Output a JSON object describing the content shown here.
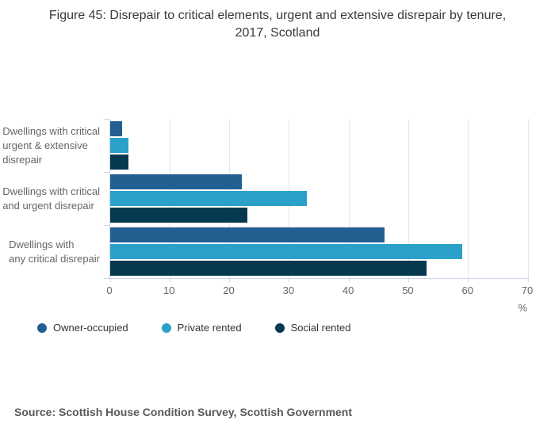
{
  "title": "Figure 45: Disrepair to critical elements, urgent and extensive disrepair by tenure, 2017, Scotland",
  "source": "Source: Scottish House Condition Survey, Scottish Government",
  "chart_data": {
    "type": "bar",
    "orientation": "horizontal",
    "title": "Figure 45: Disrepair to critical elements, urgent and extensive disrepair by tenure, 2017, Scotland",
    "categories": [
      "Dwellings with critical\nurgent & extensive\ndisrepair",
      "Dwellings with critical\nand urgent disrepair",
      "Dwellings with\nany critical disrepair"
    ],
    "series": [
      {
        "name": "Owner-occupied",
        "color": "#235f91",
        "values": [
          2,
          22,
          46
        ]
      },
      {
        "name": "Private rented",
        "color": "#2ba0c9",
        "values": [
          3,
          33,
          59
        ]
      },
      {
        "name": "Social rented",
        "color": "#063950",
        "values": [
          3,
          23,
          53
        ]
      }
    ],
    "xlabel": "%",
    "xlim": [
      0,
      70
    ],
    "xticks": [
      0,
      10,
      20,
      30,
      40,
      50,
      60,
      70
    ],
    "grid": true,
    "legend_position": "bottom-left"
  },
  "colors": {
    "grid_line": "#e6e6e6",
    "axis_line": "#ccd6eb",
    "tick_text": "#666666",
    "category_text": "#666666",
    "title_text": "#3a3a3a",
    "legend_text": "#333333",
    "source_text": "#58595b"
  }
}
